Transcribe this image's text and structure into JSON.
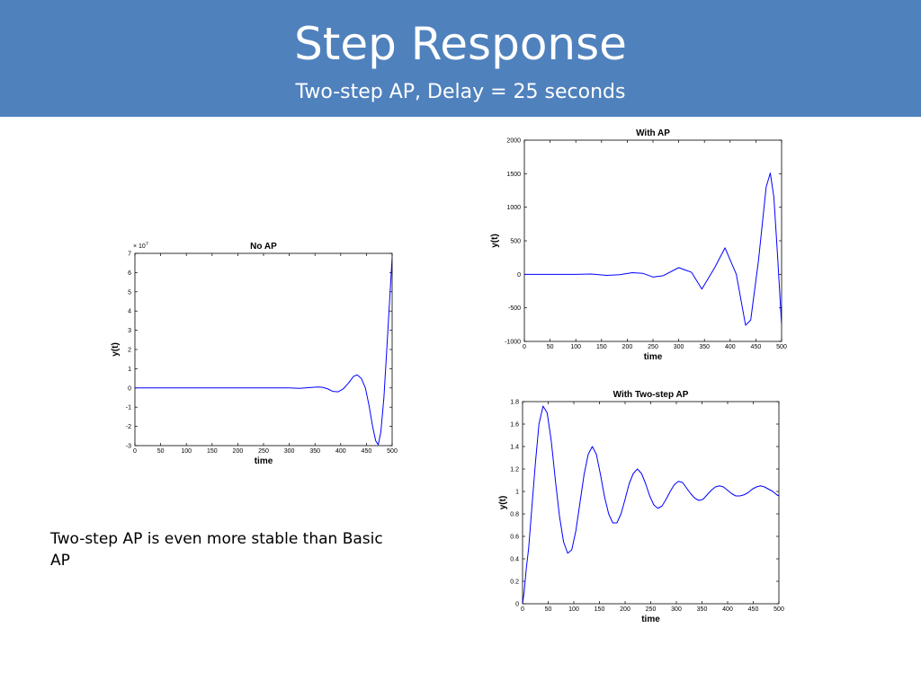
{
  "slide": {
    "title": "Step Response",
    "subtitle": "Two-step AP, Delay = 25 seconds",
    "body_text": "Two-step AP is even more stable than Basic AP"
  },
  "colors": {
    "banner": "#4f81bd",
    "series": "#0000ff"
  },
  "chart_data": [
    {
      "type": "line",
      "title": "No AP",
      "xlabel": "time",
      "ylabel": "y(t)",
      "xlim": [
        0,
        500
      ],
      "ylim": [
        -3,
        7
      ],
      "y_multiplier_label": "× 10",
      "y_multiplier_exponent": "7",
      "xticks": [
        0,
        50,
        100,
        150,
        200,
        250,
        300,
        350,
        400,
        450,
        500
      ],
      "yticks": [
        -3,
        -2,
        -1,
        0,
        1,
        2,
        3,
        4,
        5,
        6,
        7
      ],
      "grid": false,
      "series": [
        {
          "color": "#0000ff",
          "x": [
            0,
            100,
            200,
            250,
            300,
            320,
            340,
            355,
            365,
            375,
            385,
            395,
            405,
            415,
            425,
            432,
            440,
            448,
            455,
            462,
            468,
            473,
            478,
            484,
            490,
            495,
            500
          ],
          "y": [
            0,
            0,
            0,
            0,
            0,
            -0.02,
            0.02,
            0.05,
            0.03,
            -0.05,
            -0.18,
            -0.2,
            -0.05,
            0.25,
            0.6,
            0.68,
            0.5,
            0.0,
            -0.9,
            -2.0,
            -2.75,
            -2.95,
            -2.3,
            -0.5,
            2.2,
            4.5,
            6.8
          ]
        }
      ]
    },
    {
      "type": "line",
      "title": "With AP",
      "xlabel": "time",
      "ylabel": "y(t)",
      "xlim": [
        0,
        500
      ],
      "ylim": [
        -1000,
        2000
      ],
      "xticks": [
        0,
        50,
        100,
        150,
        200,
        250,
        300,
        350,
        400,
        450,
        500
      ],
      "yticks": [
        -1000,
        -500,
        0,
        500,
        1000,
        1500,
        2000
      ],
      "grid": false,
      "series": [
        {
          "color": "#0000ff",
          "x": [
            0,
            50,
            100,
            130,
            160,
            185,
            210,
            230,
            250,
            270,
            300,
            325,
            345,
            370,
            390,
            412,
            430,
            440,
            455,
            470,
            478,
            485,
            492,
            500
          ],
          "y": [
            0,
            0,
            0,
            5,
            -15,
            -5,
            25,
            15,
            -40,
            -20,
            100,
            30,
            -220,
            100,
            395,
            0,
            -760,
            -680,
            200,
            1300,
            1510,
            1150,
            300,
            -750
          ]
        }
      ]
    },
    {
      "type": "line",
      "title": "With Two-step AP",
      "xlabel": "time",
      "ylabel": "y(t)",
      "xlim": [
        0,
        500
      ],
      "ylim": [
        0,
        1.8
      ],
      "xticks": [
        0,
        50,
        100,
        150,
        200,
        250,
        300,
        350,
        400,
        450,
        500
      ],
      "yticks": [
        0,
        0.2,
        0.4,
        0.6,
        0.8,
        1,
        1.2,
        1.4,
        1.6,
        1.8
      ],
      "grid": false,
      "series": [
        {
          "color": "#0000ff",
          "x": [
            0,
            3,
            7,
            12,
            18,
            25,
            32,
            40,
            48,
            56,
            64,
            72,
            80,
            88,
            96,
            104,
            112,
            120,
            128,
            136,
            144,
            152,
            160,
            168,
            176,
            184,
            192,
            200,
            208,
            216,
            224,
            232,
            240,
            248,
            256,
            264,
            272,
            280,
            288,
            296,
            304,
            312,
            320,
            328,
            336,
            344,
            352,
            360,
            368,
            376,
            384,
            392,
            400,
            408,
            416,
            424,
            432,
            440,
            448,
            456,
            464,
            472,
            480,
            488,
            496,
            500
          ],
          "y": [
            0,
            0.1,
            0.3,
            0.5,
            0.85,
            1.25,
            1.6,
            1.76,
            1.7,
            1.45,
            1.1,
            0.78,
            0.55,
            0.45,
            0.48,
            0.65,
            0.9,
            1.15,
            1.33,
            1.4,
            1.33,
            1.15,
            0.95,
            0.8,
            0.72,
            0.72,
            0.8,
            0.93,
            1.07,
            1.16,
            1.2,
            1.16,
            1.07,
            0.96,
            0.88,
            0.85,
            0.87,
            0.93,
            1.0,
            1.06,
            1.09,
            1.08,
            1.03,
            0.98,
            0.94,
            0.92,
            0.93,
            0.97,
            1.01,
            1.04,
            1.05,
            1.04,
            1.01,
            0.98,
            0.96,
            0.96,
            0.97,
            0.99,
            1.02,
            1.04,
            1.05,
            1.04,
            1.02,
            1.0,
            0.97,
            0.96
          ]
        }
      ]
    }
  ]
}
